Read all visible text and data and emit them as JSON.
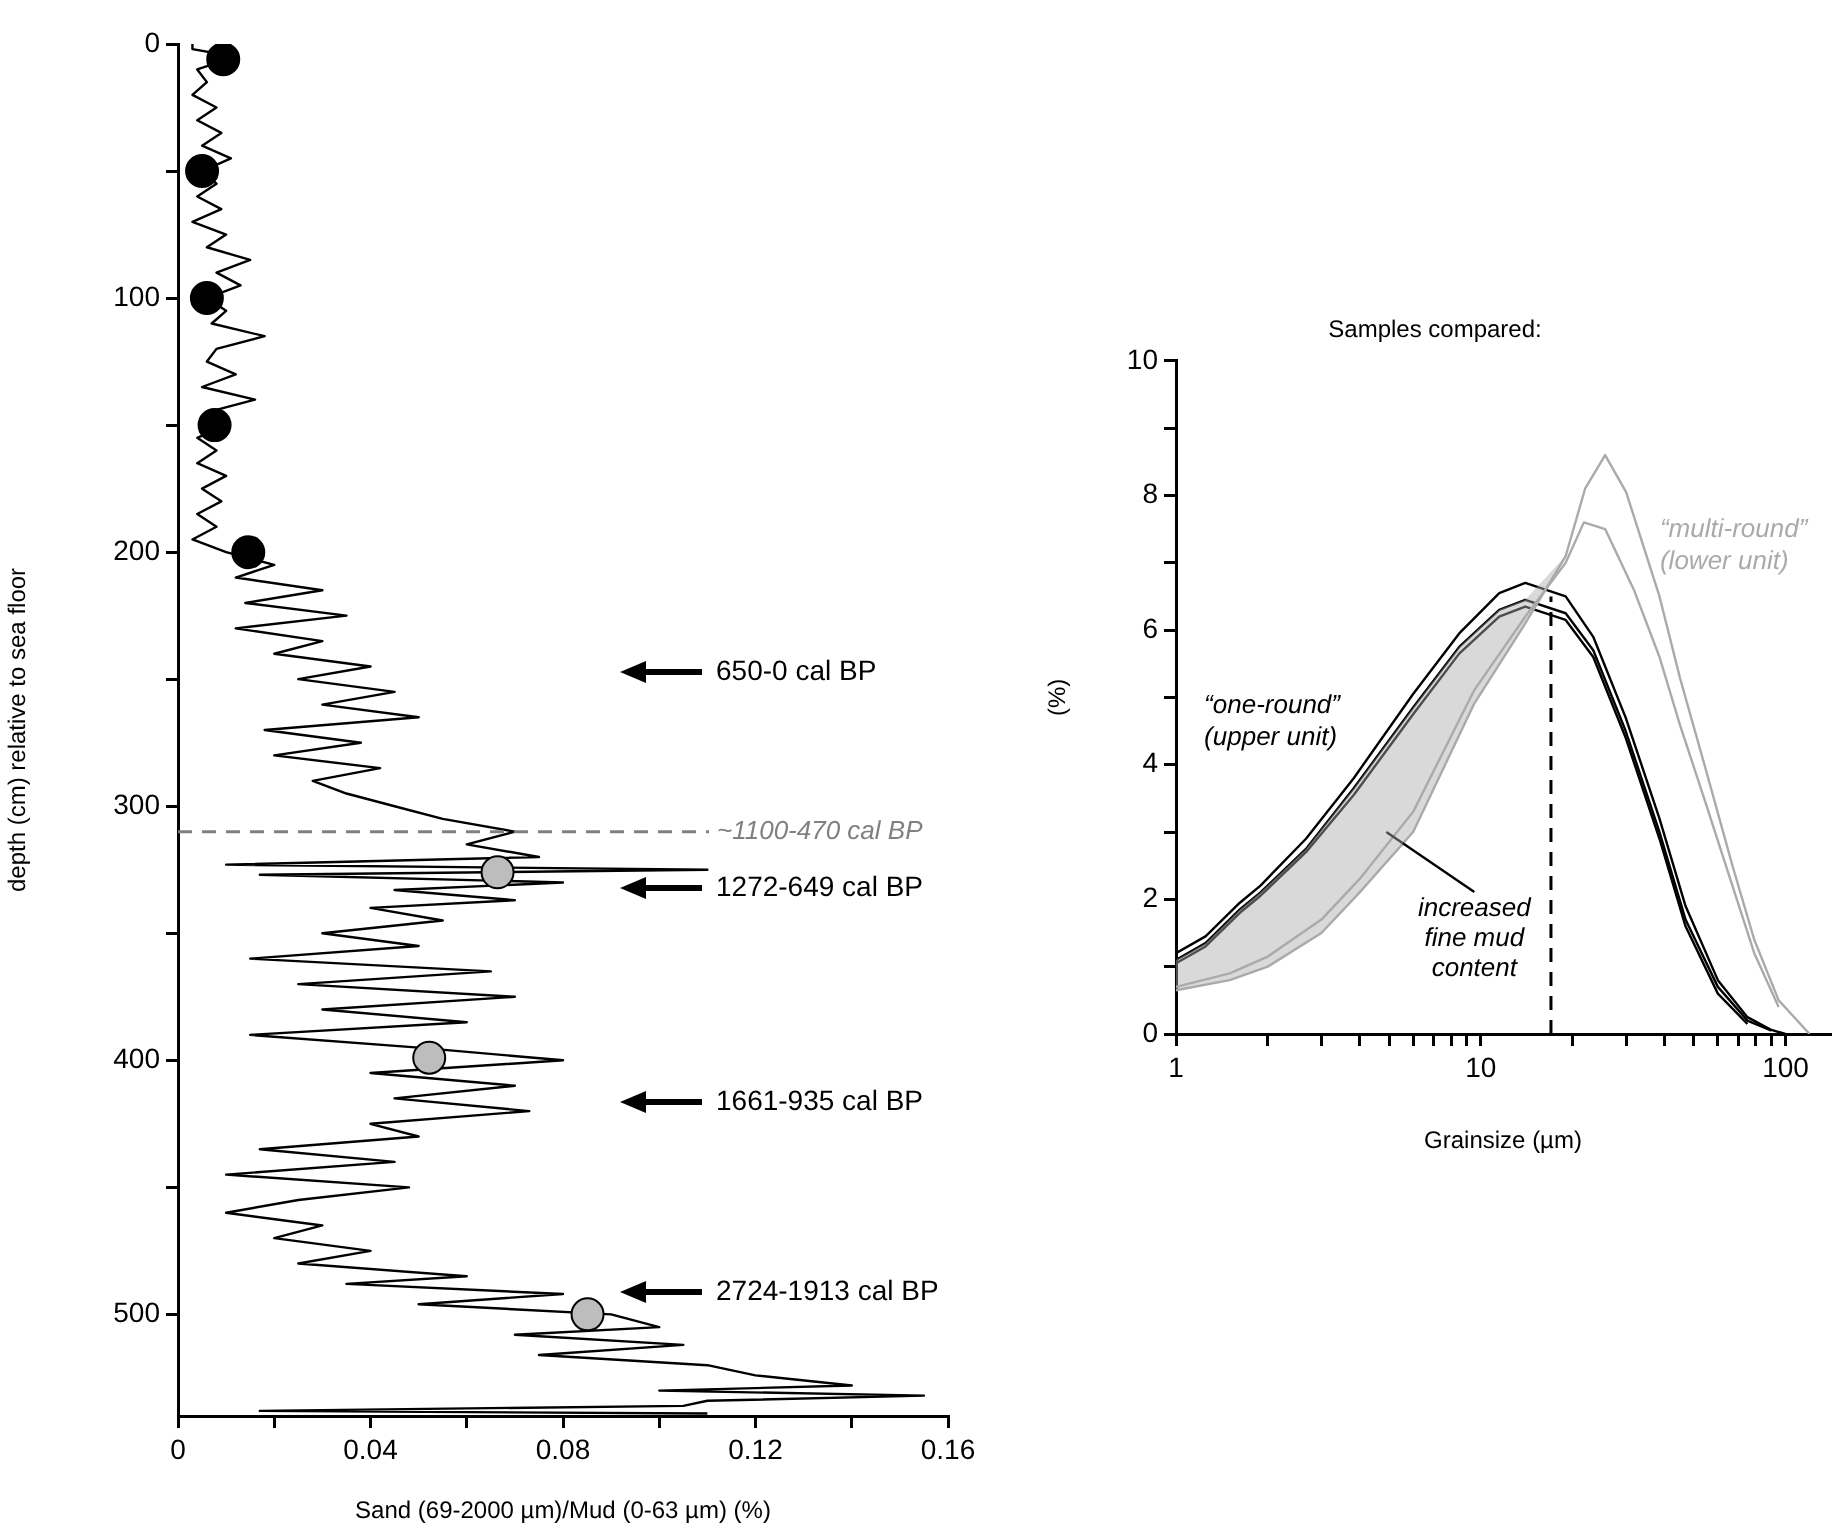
{
  "chart_data": [
    {
      "type": "line",
      "xlabel": "Sand (69-2000 µm)/Mud (0-63 µm) (%)",
      "ylabel": "depth (cm) relative to sea floor",
      "xlim": [
        0,
        0.16
      ],
      "xticks": [
        0,
        {
          "value": 0.02,
          "label": null
        },
        0.04,
        {
          "value": 0.06,
          "label": null
        },
        0.08,
        {
          "value": 0.1,
          "label": null
        },
        0.12,
        {
          "value": 0.14,
          "label": null
        },
        0.16
      ],
      "ylim": [
        540,
        0
      ],
      "yticks": [
        0,
        {
          "value": 50,
          "label": null
        },
        100,
        {
          "value": 150,
          "label": null
        },
        200,
        {
          "value": 250,
          "label": null
        },
        300,
        {
          "value": 350,
          "label": null
        },
        400,
        {
          "value": 450,
          "label": null
        },
        500
      ],
      "series": [
        {
          "color": "#000000",
          "marker": "none",
          "x": [
            0.003,
            0.003,
            0.012,
            0.004,
            0.006,
            0.003,
            0.008,
            0.004,
            0.009,
            0.005,
            0.011,
            0.005,
            0.008,
            0.004,
            0.009,
            0.003,
            0.01,
            0.006,
            0.015,
            0.008,
            0.013,
            0.006,
            0.01,
            0.007,
            0.018,
            0.008,
            0.006,
            0.012,
            0.005,
            0.016,
            0.006,
            0.01,
            0.004,
            0.008,
            0.004,
            0.01,
            0.005,
            0.009,
            0.004,
            0.008,
            0.003,
            0.01,
            0.02,
            0.012,
            0.03,
            0.014,
            0.035,
            0.012,
            0.03,
            0.02,
            0.04,
            0.025,
            0.045,
            0.03,
            0.05,
            0.018,
            0.038,
            0.02,
            0.042,
            0.028,
            0.035,
            0.045,
            0.055,
            0.07,
            0.06,
            0.075,
            0.01,
            0.11,
            0.017,
            0.08,
            0.045,
            0.07,
            0.04,
            0.055,
            0.03,
            0.05,
            0.015,
            0.065,
            0.025,
            0.07,
            0.03,
            0.06,
            0.015,
            0.05,
            0.08,
            0.04,
            0.07,
            0.045,
            0.073,
            0.04,
            0.05,
            0.017,
            0.045,
            0.01,
            0.048,
            0.025,
            0.01,
            0.03,
            0.02,
            0.04,
            0.025,
            0.06,
            0.035,
            0.08,
            0.05,
            0.09,
            0.1,
            0.07,
            0.105,
            0.075,
            0.11,
            0.12,
            0.14,
            0.1,
            0.155,
            0.11,
            0.105,
            0.017,
            0.11
          ],
          "values": [
            0,
            2,
            5,
            10,
            15,
            20,
            25,
            30,
            35,
            40,
            45,
            50,
            55,
            60,
            65,
            70,
            75,
            80,
            85,
            90,
            95,
            100,
            105,
            110,
            115,
            120,
            125,
            130,
            135,
            140,
            145,
            150,
            155,
            160,
            165,
            170,
            175,
            180,
            185,
            190,
            195,
            200,
            205,
            210,
            215,
            220,
            225,
            230,
            235,
            240,
            245,
            250,
            255,
            260,
            265,
            270,
            275,
            280,
            285,
            290,
            295,
            300,
            305,
            310,
            315,
            320,
            323,
            325,
            327,
            330,
            333,
            337,
            340,
            345,
            350,
            355,
            360,
            365,
            370,
            375,
            380,
            385,
            390,
            395,
            400,
            405,
            410,
            415,
            420,
            425,
            430,
            435,
            440,
            445,
            450,
            455,
            460,
            465,
            470,
            475,
            480,
            485,
            488,
            492,
            496,
            500,
            505,
            508,
            512,
            516,
            520,
            524,
            528,
            530,
            532,
            534,
            536,
            538,
            539
          ]
        },
        {
          "type": "scatter",
          "color": "#000000",
          "marker": "circle",
          "x": [
            0.0094,
            0.005,
            0.006,
            0.0076,
            0.0146
          ],
          "values": [
            6,
            50,
            100,
            150,
            200
          ]
        },
        {
          "type": "scatter",
          "color": "#bdbdbd",
          "marker": "circle",
          "x": [
            0.0664,
            0.0522,
            0.0851
          ],
          "values": [
            326,
            399,
            500
          ]
        }
      ],
      "ref_lines": [
        {
          "axis": "y",
          "value": 310,
          "label": "~1100-470 cal BP",
          "color": "#808080",
          "line_style": "dashed"
        }
      ],
      "annotations": [
        "650-0 cal BP",
        "1272-649 cal BP",
        "1661-935 cal BP",
        "2724-1913 cal BP"
      ]
    },
    {
      "type": "line",
      "title": "Samples compared:",
      "xlabel": "Grainsize (µm)",
      "ylabel": "(%)",
      "log": "x",
      "xlim": [
        1,
        140
      ],
      "xticks": [
        1,
        {
          "value": 2,
          "label": null
        },
        {
          "value": 3,
          "label": null
        },
        {
          "value": 4,
          "label": null
        },
        {
          "value": 5,
          "label": null
        },
        {
          "value": 6,
          "label": null
        },
        {
          "value": 7,
          "label": null
        },
        {
          "value": 8,
          "label": null
        },
        {
          "value": 9,
          "label": null
        },
        10,
        {
          "value": 20,
          "label": null
        },
        {
          "value": 30,
          "label": null
        },
        {
          "value": 40,
          "label": null
        },
        {
          "value": 50,
          "label": null
        },
        {
          "value": 60,
          "label": null
        },
        {
          "value": 70,
          "label": null
        },
        {
          "value": 80,
          "label": null
        },
        {
          "value": 90,
          "label": null
        },
        100
      ],
      "ylim": [
        0,
        10
      ],
      "yticks": [
        0,
        {
          "value": 1,
          "label": null
        },
        2,
        {
          "value": 3,
          "label": null
        },
        4,
        {
          "value": 5,
          "label": null
        },
        6,
        {
          "value": 7,
          "label": null
        },
        8,
        {
          "value": 9,
          "label": null
        },
        10
      ],
      "series": [
        {
          "color": "#aaaaaa",
          "x": [
            1,
            1.5,
            2,
            3,
            4,
            6,
            9.5,
            14,
            19,
            22,
            25.6,
            30,
            38.6,
            45,
            55,
            67,
            79,
            95,
            120
          ],
          "values": [
            0.65,
            0.8,
            1.0,
            1.5,
            2.1,
            3.0,
            4.9,
            6.1,
            7.1,
            8.1,
            8.6,
            8.05,
            6.5,
            5.3,
            3.9,
            2.5,
            1.4,
            0.5,
            0
          ]
        },
        {
          "color": "#aaaaaa",
          "x": [
            1,
            1.5,
            2,
            3,
            4,
            6,
            9.5,
            14,
            19,
            21.8,
            25.6,
            31.8,
            38.6,
            45,
            55,
            67,
            79,
            95
          ],
          "values": [
            0.7,
            0.9,
            1.15,
            1.7,
            2.3,
            3.3,
            5.1,
            6.2,
            7.0,
            7.6,
            7.5,
            6.6,
            5.6,
            4.6,
            3.4,
            2.2,
            1.2,
            0.4
          ]
        },
        {
          "color": "#000000",
          "x": [
            1,
            1.25,
            1.62,
            1.89,
            2.67,
            3.83,
            6,
            8.5,
            11.5,
            14,
            19,
            23.4,
            29.9,
            38.6,
            47,
            60,
            75,
            90,
            100
          ],
          "values": [
            1.2,
            1.45,
            1.95,
            2.2,
            2.9,
            3.8,
            5.05,
            5.95,
            6.55,
            6.7,
            6.5,
            5.9,
            4.7,
            3.2,
            1.9,
            0.8,
            0.25,
            0.06,
            0
          ]
        },
        {
          "color": "#000000",
          "x": [
            1,
            1.25,
            1.62,
            1.89,
            2.67,
            3.83,
            6,
            8.5,
            11.5,
            14,
            19,
            23.4,
            29.9,
            38.6,
            47,
            60,
            75,
            90
          ],
          "values": [
            1.1,
            1.35,
            1.85,
            2.1,
            2.75,
            3.65,
            4.85,
            5.75,
            6.3,
            6.45,
            6.25,
            5.7,
            4.5,
            3.0,
            1.7,
            0.7,
            0.2,
            0.05
          ]
        },
        {
          "color": "#000000",
          "x": [
            1,
            1.25,
            1.62,
            1.89,
            2.67,
            3.83,
            6,
            8.5,
            11.5,
            14,
            19,
            23.4,
            29.9,
            38.6,
            47,
            60,
            75
          ],
          "values": [
            1.05,
            1.3,
            1.8,
            2.05,
            2.7,
            3.55,
            4.75,
            5.65,
            6.2,
            6.35,
            6.15,
            5.6,
            4.4,
            2.9,
            1.6,
            0.6,
            0.15
          ]
        }
      ],
      "ref_lines": [
        {
          "axis": "x",
          "value": 17,
          "color": "#000000",
          "line_style": "dashed"
        }
      ],
      "annotations": [
        "“one-round”\n(upper unit)",
        "“multi-round”\n(lower unit)",
        {
          "text": "increased\nfine mud\ncontent",
          "x": 4.9,
          "y": 3.0
        }
      ]
    }
  ]
}
